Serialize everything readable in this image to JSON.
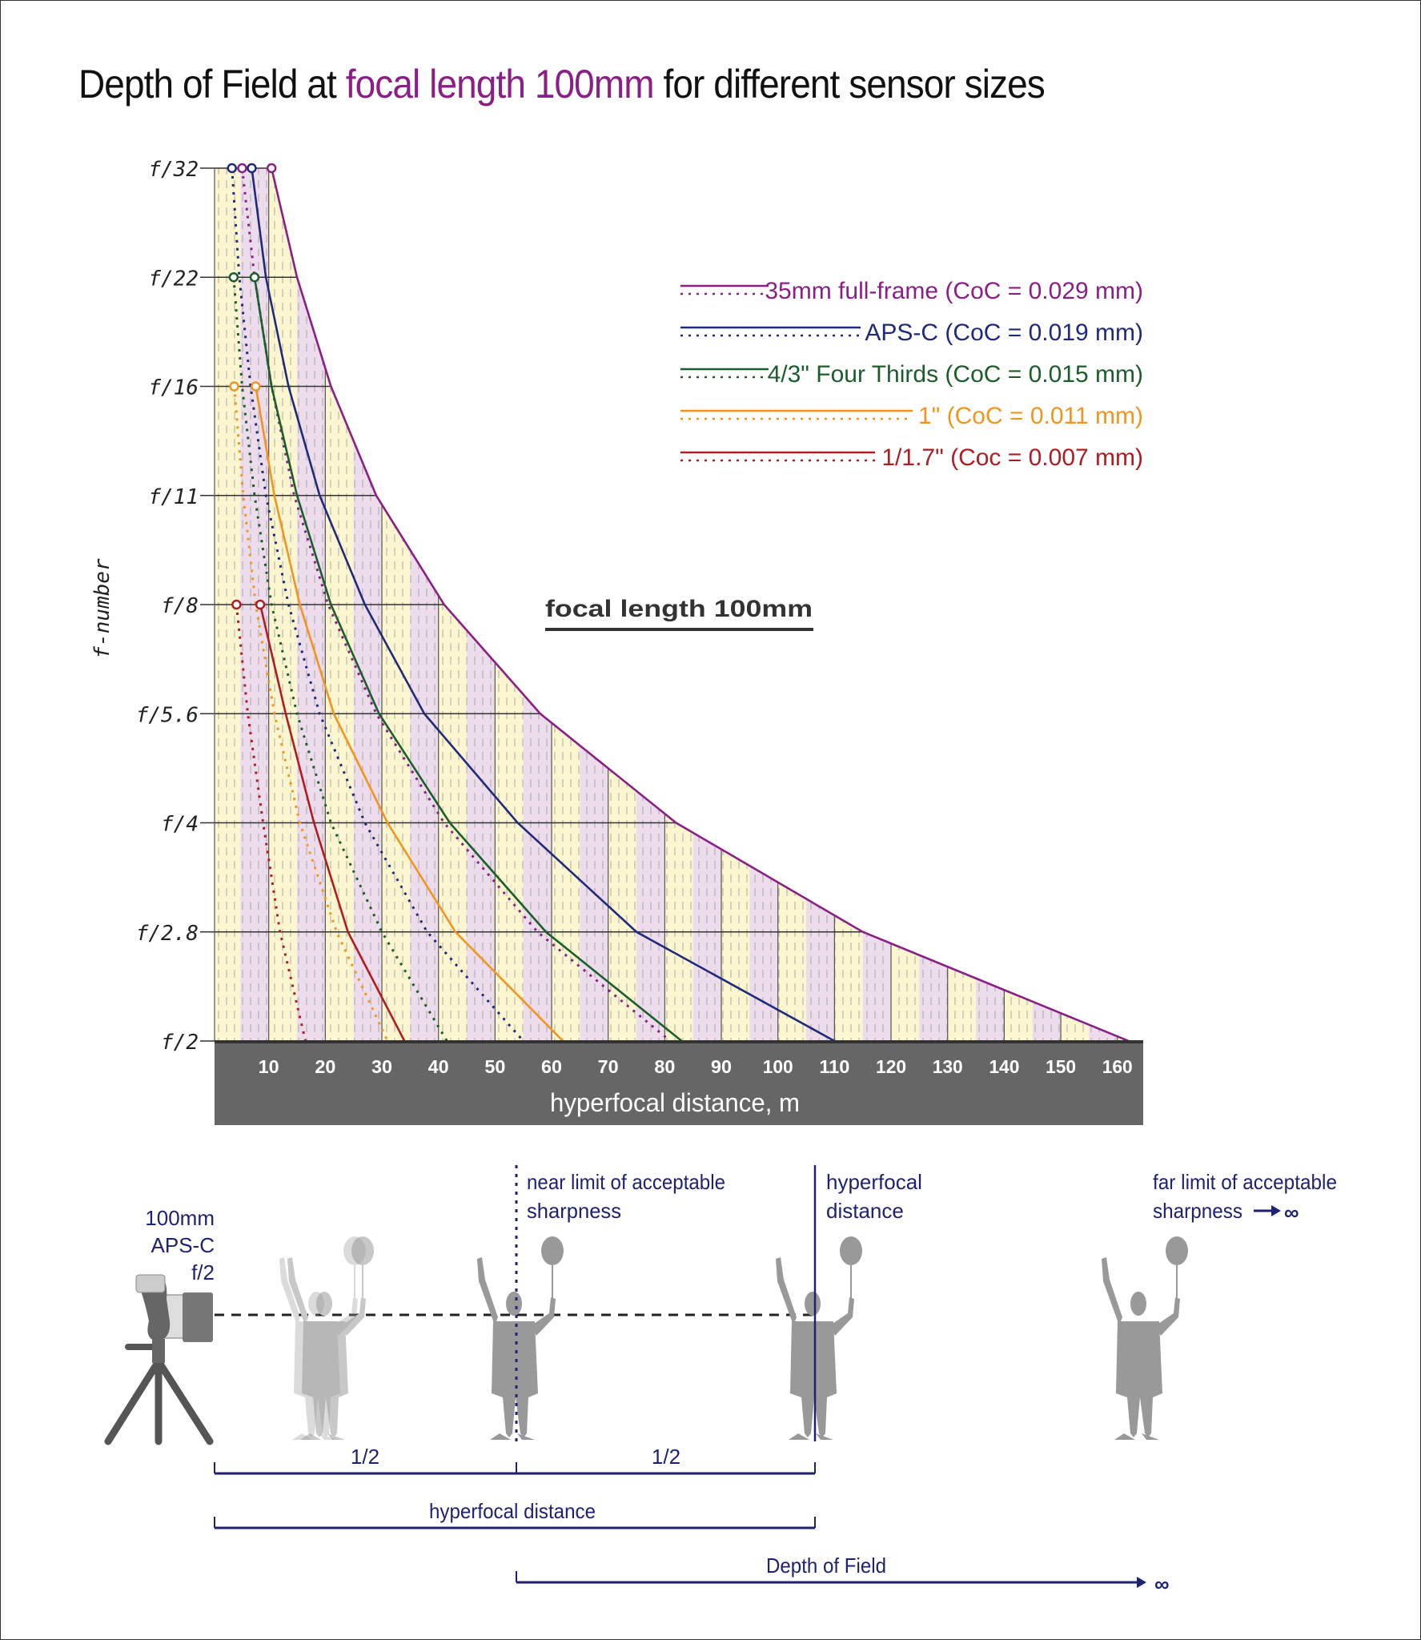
{
  "title": {
    "prefix": "Depth of Field at ",
    "highlight": "focal length 100mm",
    "suffix": " for different sensor sizes"
  },
  "chart_data": {
    "type": "line",
    "title": "Depth of Field at focal length 100mm for different sensor sizes",
    "annotation": "focal length 100mm",
    "xlabel": "hyperfocal distance, m",
    "ylabel": "f-number",
    "x_ticks": [
      10,
      20,
      30,
      40,
      50,
      60,
      70,
      80,
      90,
      100,
      110,
      120,
      130,
      140,
      150,
      160
    ],
    "y_ticks": [
      "f/32",
      "f/22",
      "f/16",
      "f/11",
      "f/8",
      "f/5.6",
      "f/4",
      "f/2.8",
      "f/2"
    ],
    "xlim": [
      0,
      160
    ],
    "grid": true,
    "legend_position": "upper right",
    "series": [
      {
        "name": "35mm full-frame (CoC = 0.029 mm)",
        "color": "#8a1f86",
        "hyperfocal_solid": [
          10.5,
          15,
          21,
          29,
          41,
          58,
          82,
          115,
          162
        ],
        "near_limit_dotted": [
          5.3,
          7.5,
          10.5,
          14.5,
          20.5,
          29,
          41,
          57.5,
          81
        ]
      },
      {
        "name": "APS-C (CoC = 0.019 mm)",
        "color": "#1f2a7a",
        "hyperfocal_solid": [
          7,
          9.5,
          13.5,
          19,
          27,
          37.5,
          54,
          75,
          110
        ],
        "near_limit_dotted": [
          3.5,
          4.8,
          6.8,
          9.5,
          13.5,
          19,
          27,
          38,
          55
        ]
      },
      {
        "name": "4/3\" Four Thirds (CoC = 0.015 mm)",
        "color": "#1b5e2b",
        "hyperfocal_solid": [
          null,
          7.5,
          10.5,
          15,
          21,
          29.5,
          42,
          59,
          83
        ],
        "near_limit_dotted": [
          null,
          3.8,
          5.3,
          7.5,
          10.5,
          15,
          21,
          30,
          41.5
        ]
      },
      {
        "name": "1\" (CoC = 0.011 mm)",
        "color": "#f0961e",
        "hyperfocal_solid": [
          null,
          null,
          7.7,
          11,
          15.5,
          21.5,
          31,
          43,
          62
        ],
        "near_limit_dotted": [
          null,
          null,
          3.9,
          5.5,
          7.7,
          11,
          15.5,
          22,
          31
        ]
      },
      {
        "name": "1/1.7\" (Coc = 0.007 mm)",
        "color": "#b01c22",
        "hyperfocal_solid": [
          null,
          null,
          null,
          null,
          8.5,
          13,
          18,
          24,
          34
        ],
        "near_limit_dotted": [
          null,
          null,
          null,
          null,
          4.3,
          6.3,
          9,
          12,
          16.5
        ]
      }
    ]
  },
  "legend": [
    {
      "label": "35mm full-frame (CoC = 0.029 mm)",
      "color": "#8a1f86"
    },
    {
      "label": "APS-C (CoC = 0.019 mm)",
      "color": "#1f2a7a"
    },
    {
      "label": "4/3\" Four Thirds (CoC = 0.015 mm)",
      "color": "#1b5e2b"
    },
    {
      "label": "1\" (CoC = 0.011 mm)",
      "color": "#f0961e"
    },
    {
      "label": "1/1.7\" (Coc = 0.007 mm)",
      "color": "#b01c22"
    }
  ],
  "illustration": {
    "camera_label": [
      "100mm",
      "APS-C",
      "f/2"
    ],
    "near_limit_label": [
      "near limit of acceptable",
      "sharpness"
    ],
    "hyperfocal_label": [
      "hyperfocal",
      "distance"
    ],
    "far_limit_label": [
      "far limit of acceptable",
      "sharpness"
    ],
    "infinity": "∞",
    "half_left": "1/2",
    "half_right": "1/2",
    "hyperfocal_bracket": "hyperfocal distance",
    "dof_bracket": "Depth of Field"
  }
}
